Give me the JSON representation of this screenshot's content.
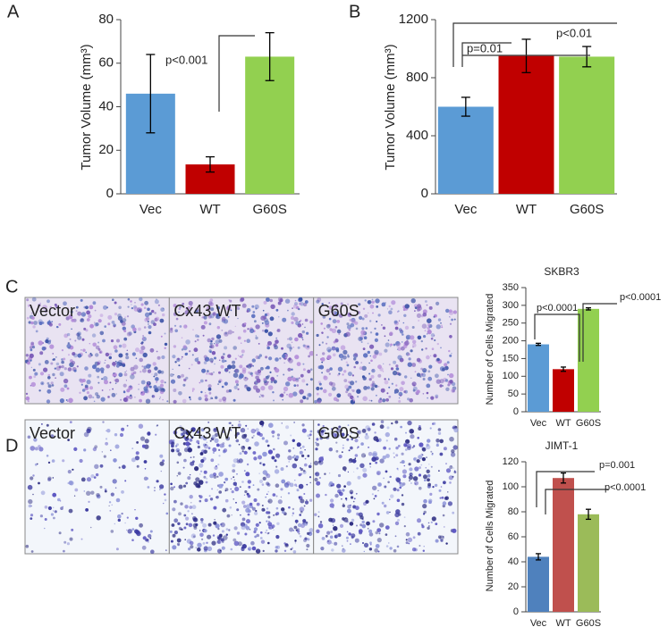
{
  "chart_data": [
    {
      "type": "bar",
      "panel_label": "A",
      "ylabel": "Tumor Volume (mm³)",
      "categories": [
        "Vec",
        "WT",
        "G60S"
      ],
      "values": [
        46,
        13.5,
        63
      ],
      "errors": [
        18,
        3.5,
        11
      ],
      "colors": [
        "#5b9bd5",
        "#c00000",
        "#92d050"
      ],
      "ylim": [
        0,
        80
      ],
      "yticks": [
        0,
        20,
        40,
        60,
        80
      ],
      "grid": false,
      "annotations": [
        "p<0.001"
      ]
    },
    {
      "type": "bar",
      "panel_label": "B",
      "ylabel": "Tumor Volume (mm³)",
      "categories": [
        "Vec",
        "WT",
        "G60S"
      ],
      "values": [
        600,
        950,
        945
      ],
      "errors": [
        65,
        115,
        70
      ],
      "colors": [
        "#5b9bd5",
        "#c00000",
        "#92d050"
      ],
      "ylim": [
        0,
        1200
      ],
      "yticks": [
        0,
        400,
        800,
        1200
      ],
      "grid": false,
      "annotations": [
        "p=0.01",
        "p<0.01"
      ]
    },
    {
      "type": "bar",
      "panel_label": "C",
      "title": "SKBR3",
      "ylabel": "Number of Cells Migrated",
      "micrograph_labels": [
        "Vector",
        "Cx43 WT",
        "G60S"
      ],
      "categories": [
        "Vec",
        "WT",
        "G60S"
      ],
      "values": [
        190,
        120,
        290
      ],
      "errors": [
        3,
        6,
        3
      ],
      "colors": [
        "#5b9bd5",
        "#c00000",
        "#92d050"
      ],
      "ylim": [
        0,
        350
      ],
      "yticks": [
        0,
        50,
        100,
        150,
        200,
        250,
        300,
        350
      ],
      "grid": false,
      "annotations": [
        "p<0.0001",
        "p<0.0001"
      ]
    },
    {
      "type": "bar",
      "panel_label": "D",
      "title": "JIMT-1",
      "ylabel": "Number of Cells Migrated",
      "micrograph_labels": [
        "Vector",
        "Cx43 WT",
        "G60S"
      ],
      "categories": [
        "Vec",
        "WT",
        "G60S"
      ],
      "values": [
        44,
        107,
        78
      ],
      "errors": [
        2.5,
        4,
        4
      ],
      "colors": [
        "#4f81bd",
        "#c0504d",
        "#9bbb59"
      ],
      "ylim": [
        0,
        120
      ],
      "yticks": [
        0,
        20,
        40,
        60,
        80,
        100,
        120
      ],
      "grid": false,
      "annotations": [
        "p=0.001",
        "p<0.0001"
      ]
    }
  ]
}
